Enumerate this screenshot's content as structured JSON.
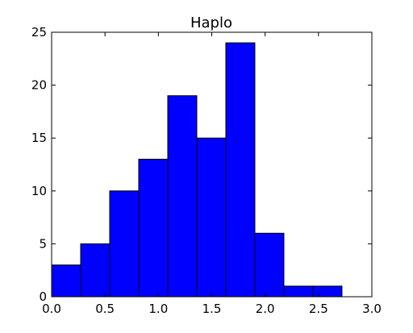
{
  "chart_data": {
    "type": "bar",
    "title": "Haplo",
    "xlabel": "",
    "ylabel": "",
    "bins": [
      {
        "x0": 0.0,
        "x1": 0.272,
        "value": 3
      },
      {
        "x0": 0.272,
        "x1": 0.544,
        "value": 5
      },
      {
        "x0": 0.544,
        "x1": 0.816,
        "value": 10
      },
      {
        "x0": 0.816,
        "x1": 1.088,
        "value": 13
      },
      {
        "x0": 1.088,
        "x1": 1.36,
        "value": 19
      },
      {
        "x0": 1.36,
        "x1": 1.632,
        "value": 15
      },
      {
        "x0": 1.632,
        "x1": 1.904,
        "value": 24
      },
      {
        "x0": 1.904,
        "x1": 2.176,
        "value": 6
      },
      {
        "x0": 2.176,
        "x1": 2.448,
        "value": 1
      },
      {
        "x0": 2.448,
        "x1": 2.72,
        "value": 1
      }
    ],
    "xlim": [
      0,
      3.0
    ],
    "ylim": [
      0,
      25
    ],
    "xticks": [
      "0.0",
      "0.5",
      "1.0",
      "1.5",
      "2.0",
      "2.5",
      "3.0"
    ],
    "yticks": [
      "0",
      "5",
      "10",
      "15",
      "20",
      "25"
    ],
    "grid": false,
    "colors": {
      "bar_fill": "#0000ff",
      "bar_edge": "#000000",
      "axis": "#000000"
    }
  }
}
